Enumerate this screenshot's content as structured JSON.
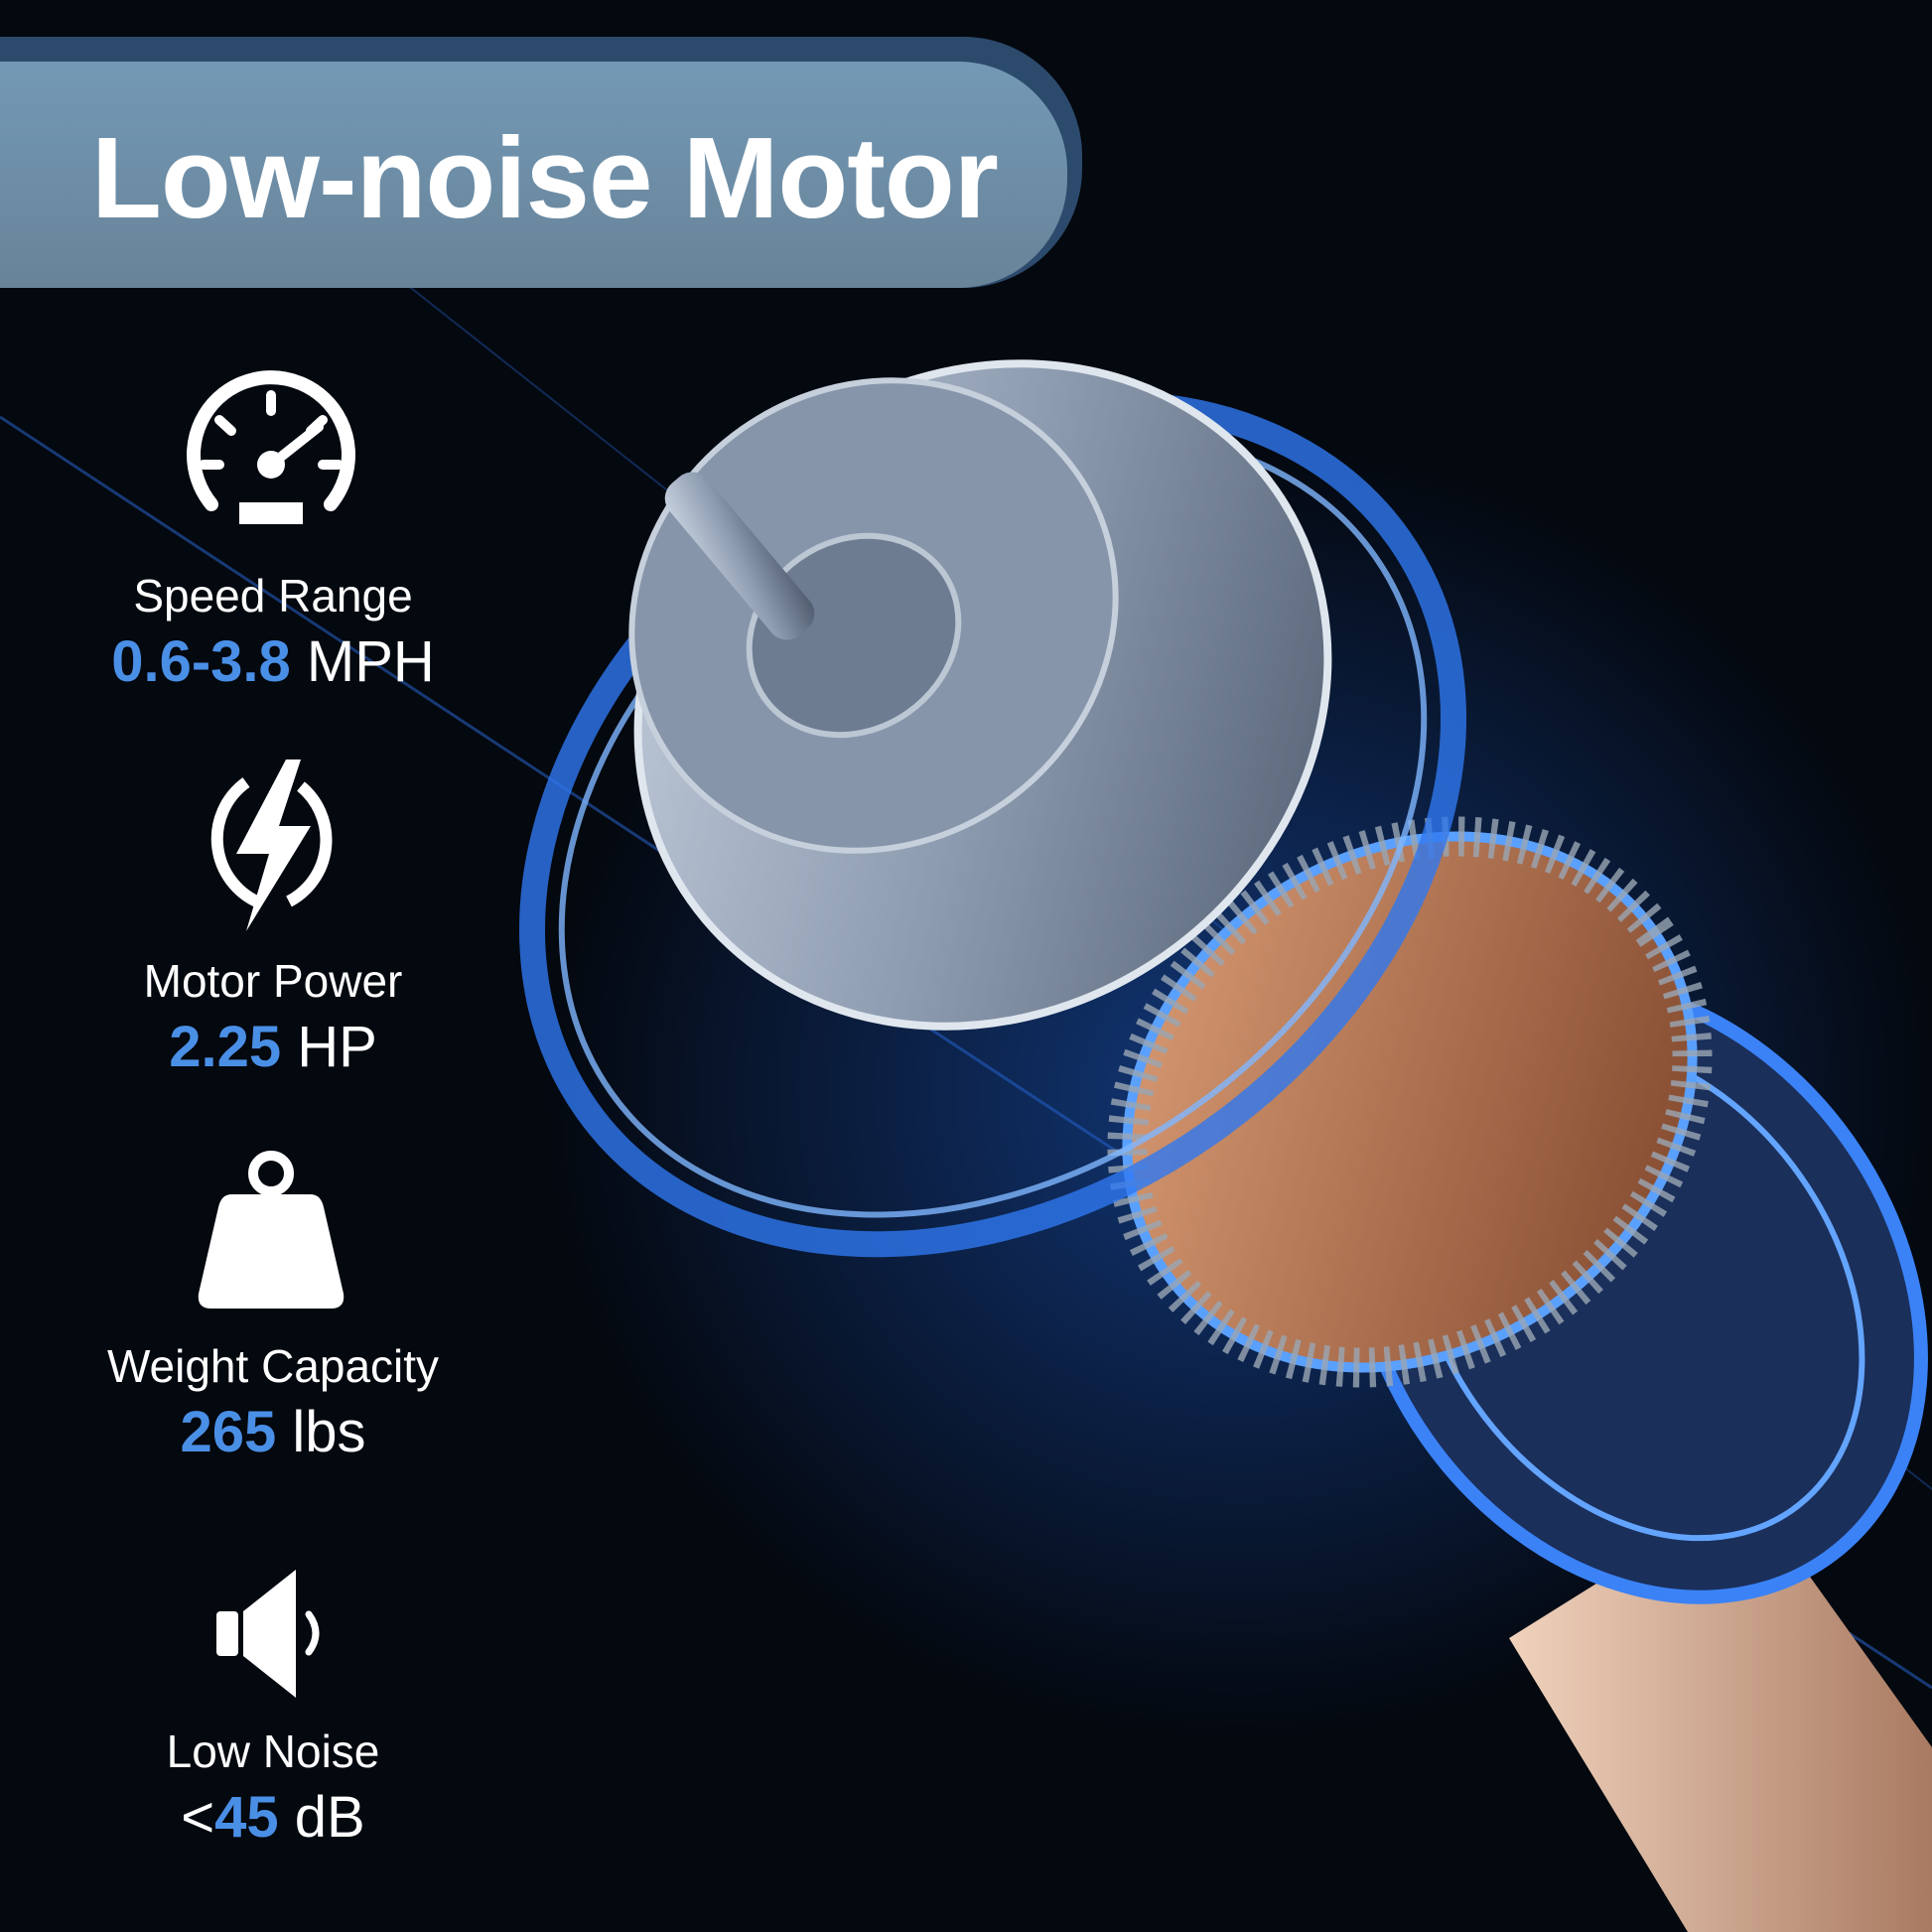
{
  "title": "Low-noise Motor",
  "colors": {
    "accent": "#4a8fe6",
    "banner": "#6f91ad",
    "background": "#04080f"
  },
  "features": [
    {
      "icon": "speedometer-icon",
      "label": "Speed Range",
      "value": "0.6-3.8",
      "unit": " MPH",
      "prefix": ""
    },
    {
      "icon": "lightning-bolt-icon",
      "label": "Motor Power",
      "value": "2.25",
      "unit": " HP",
      "prefix": ""
    },
    {
      "icon": "weight-icon",
      "label": "Weight Capacity",
      "value": "265",
      "unit": " lbs",
      "prefix": ""
    },
    {
      "icon": "speaker-icon",
      "label": "Low Noise",
      "value": "45",
      "unit": " dB",
      "prefix": "<"
    }
  ]
}
